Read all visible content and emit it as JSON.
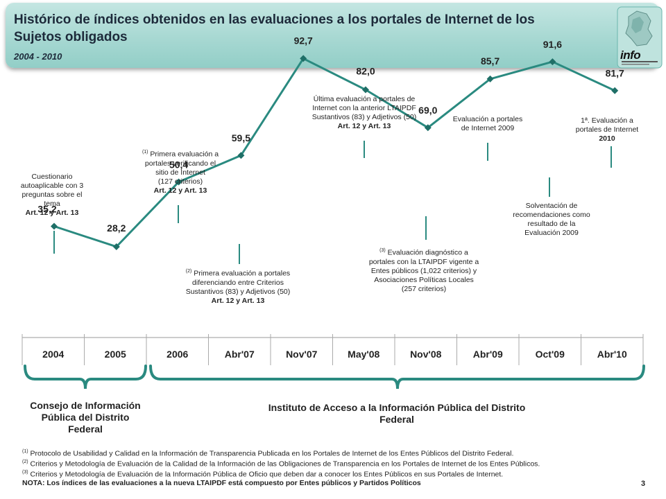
{
  "header": {
    "title": "Histórico de índices obtenidos en las evaluaciones a los portales de Internet de los Sujetos obligados",
    "subtitle": "2004 - 2010",
    "logo_text": "info"
  },
  "chart_data": {
    "type": "line",
    "categories": [
      "2004",
      "2005",
      "2006",
      "Abr'07",
      "Nov'07",
      "May'08",
      "Nov'08",
      "Abr'09",
      "Oct'09",
      "Abr'10"
    ],
    "values": [
      35.2,
      28.2,
      50.4,
      59.5,
      92.7,
      82.0,
      69.0,
      85.7,
      91.6,
      81.7
    ],
    "value_labels": [
      "35,2",
      "28,2",
      "50,4",
      "59,5",
      "92,7",
      "82,0",
      "69,0",
      "85,7",
      "91,6",
      "81,7"
    ],
    "grid": false,
    "line_color": "#2a8a80",
    "marker": "diamond"
  },
  "annotations": [
    {
      "sup": "",
      "lines": [
        "Cuestionario",
        "autoaplicable con 3",
        "preguntas sobre el",
        "tema",
        "Art. 12 y Art. 13"
      ]
    },
    {
      "sup": "(1)",
      "lines": [
        "Primera evaluación a",
        "portales verificando el",
        "sitio de Internet",
        "(127 criterios)",
        "Art. 12 y Art. 13"
      ]
    },
    {
      "sup": "(2)",
      "lines": [
        "Primera evaluación a portales",
        "diferenciando entre Criterios",
        "Sustantivos (83) y Adjetivos (50)",
        "Art. 12 y Art. 13"
      ]
    },
    {
      "sup": "",
      "lines": [
        "Última evaluación a portales de",
        "Internet con la anterior LTAIPDF",
        "Sustantivos (83) y Adjetivos (50)",
        "Art. 12 y Art. 13"
      ]
    },
    {
      "sup": "(3)",
      "lines": [
        "Evaluación diagnóstico a",
        "portales con la LTAIPDF vigente a",
        "Entes públicos (1,022 criterios) y",
        "Asociaciones Políticas Locales",
        "(257 criterios)"
      ]
    },
    {
      "sup": "",
      "lines": [
        "Evaluación a portales",
        "de Internet 2009"
      ]
    },
    {
      "sup": "",
      "lines": [
        "Solventación de",
        "recomendaciones como",
        "resultado de la",
        "Evaluación 2009"
      ]
    },
    {
      "sup": "",
      "lines": [
        "1ª. Evaluación a",
        "portales de Internet",
        "2010"
      ]
    }
  ],
  "organizations": {
    "left": "Consejo de Información Pública del Distrito Federal",
    "right": "Instituto de Acceso a la Información Pública del Distrito Federal"
  },
  "footnotes": [
    {
      "sup": "(1)",
      "text": "Protocolo de Usabilidad y Calidad en la Información de Transparencia Publicada en los Portales de Internet de los Entes Públicos del Distrito Federal."
    },
    {
      "sup": "(2)",
      "text": "Criterios y Metodología de Evaluación de la Calidad de la Información de las Obligaciones de Transparencia en los Portales de Internet de los Entes Públicos."
    },
    {
      "sup": "(3)",
      "text": "Criterios y Metodología de Evaluación de la Información Pública de Oficio que deben dar a conocer los Entes Públicos en sus Portales de Internet."
    },
    {
      "sup": "",
      "text": "NOTA: Los índices de las evaluaciones a la nueva LTAIPDF está compuesto por Entes públicos y Partidos Políticos"
    }
  ],
  "page_number": "3",
  "colors": {
    "accent": "#2a8a80",
    "header_bg": "#a7d8d2"
  }
}
